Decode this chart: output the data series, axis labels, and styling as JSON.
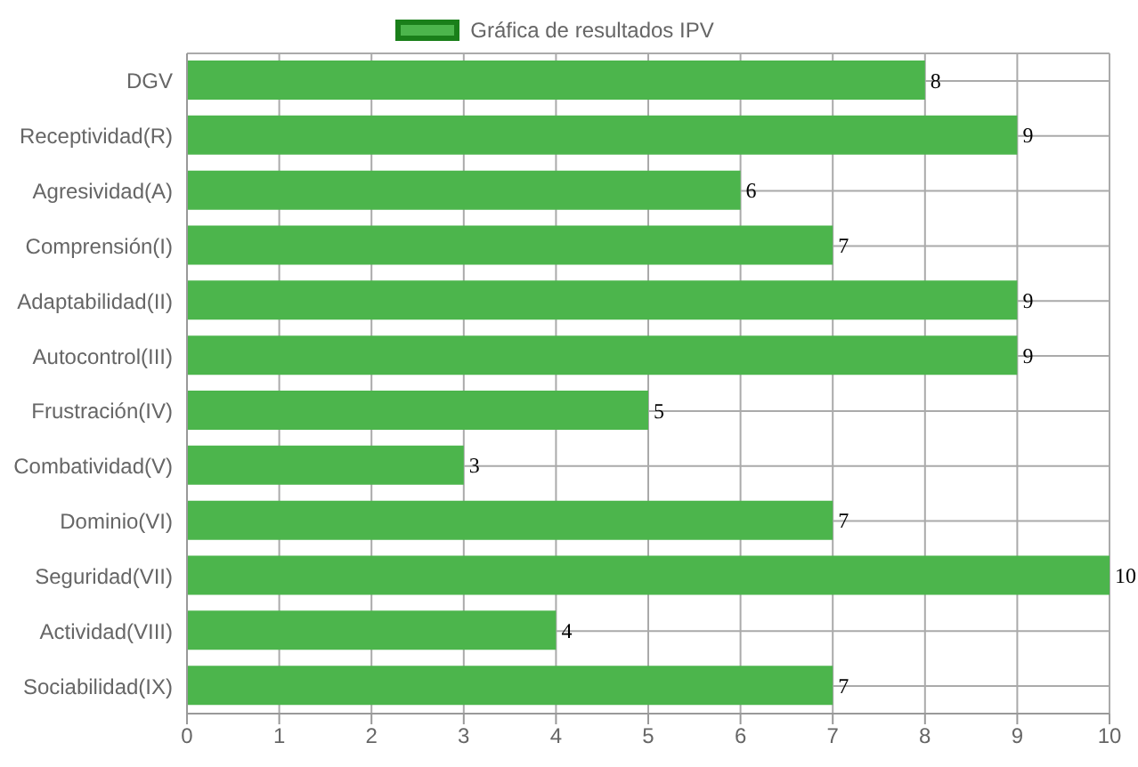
{
  "chart_data": {
    "type": "bar",
    "orientation": "horizontal",
    "categories": [
      "DGV",
      "Receptividad(R)",
      "Agresividad(A)",
      "Comprensión(I)",
      "Adaptabilidad(II)",
      "Autocontrol(III)",
      "Frustración(IV)",
      "Combatividad(V)",
      "Dominio(VI)",
      "Seguridad(VII)",
      "Actividad(VIII)",
      "Sociabilidad(IX)"
    ],
    "series": [
      {
        "name": "Gráfica de resultados IPV",
        "color": "#4cb54c",
        "values": [
          8,
          9,
          6,
          7,
          9,
          9,
          5,
          3,
          7,
          10,
          4,
          7
        ]
      }
    ],
    "xlim": [
      0,
      10
    ],
    "xticks": [
      0,
      1,
      2,
      3,
      4,
      5,
      6,
      7,
      8,
      9,
      10
    ],
    "grid": "x",
    "legend": "top",
    "data_labels": true
  }
}
